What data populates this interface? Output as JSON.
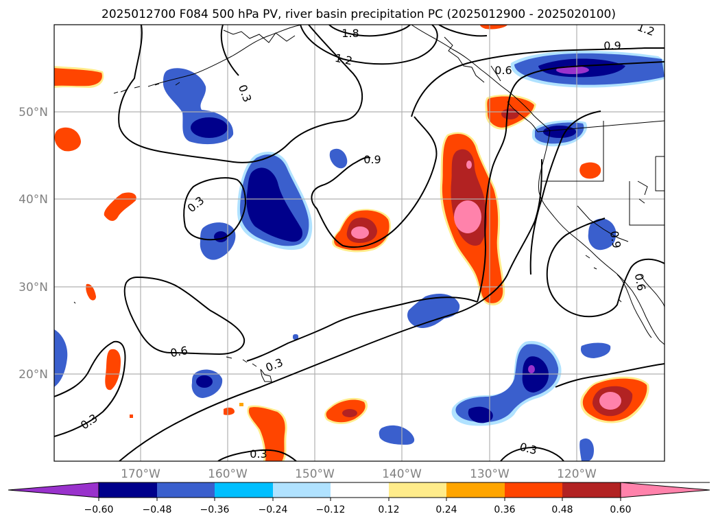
{
  "title": "2025012700 F084 500 hPa PV, river basin precipitation PC (2025012900 - 2025020100)",
  "lat_labels": [
    "50°N",
    "40°N",
    "30°N",
    "20°N"
  ],
  "lon_labels": [
    "170°W",
    "160°W",
    "150°W",
    "140°W",
    "130°W",
    "120°W"
  ],
  "contour_labels": [
    {
      "id": "c1",
      "text": "1.8"
    },
    {
      "id": "c2",
      "text": "1.2"
    },
    {
      "id": "c3",
      "text": "0.3"
    },
    {
      "id": "c4",
      "text": "0.9"
    },
    {
      "id": "c5",
      "text": "0.6"
    },
    {
      "id": "c6",
      "text": "0.9"
    },
    {
      "id": "c7",
      "text": "0.3"
    },
    {
      "id": "c8",
      "text": "0.6"
    },
    {
      "id": "c9",
      "text": "0.3"
    },
    {
      "id": "c10",
      "text": "0.3"
    },
    {
      "id": "c11",
      "text": "0.3"
    },
    {
      "id": "c12",
      "text": "0.3"
    },
    {
      "id": "c13",
      "text": "1.2"
    },
    {
      "id": "c14",
      "text": "0.9"
    },
    {
      "id": "c15",
      "text": "0.6"
    }
  ],
  "colorbar": {
    "ticks": [
      "−0.60",
      "−0.48",
      "−0.36",
      "−0.24",
      "−0.12",
      "0.12",
      "0.24",
      "0.36",
      "0.48",
      "0.60"
    ],
    "colors": [
      "#9932cc",
      "#00008b",
      "#3a5fcd",
      "#00bfff",
      "#b0e2ff",
      "#ffffff",
      "#ffec8b",
      "#ffa500",
      "#ff4500",
      "#b22222",
      "#ff82ab"
    ]
  },
  "colors": {
    "deep_blue": "#00008b",
    "mid_blue": "#3a5fcd",
    "sky": "#00bfff",
    "pale_blue": "#b0e2ff",
    "purple": "#9932cc",
    "pale_yellow": "#ffec8b",
    "orange": "#ffa500",
    "red_orange": "#ff4500",
    "firebrick": "#b22222",
    "pink": "#ff82ab",
    "grid": "#b0b0b0"
  }
}
